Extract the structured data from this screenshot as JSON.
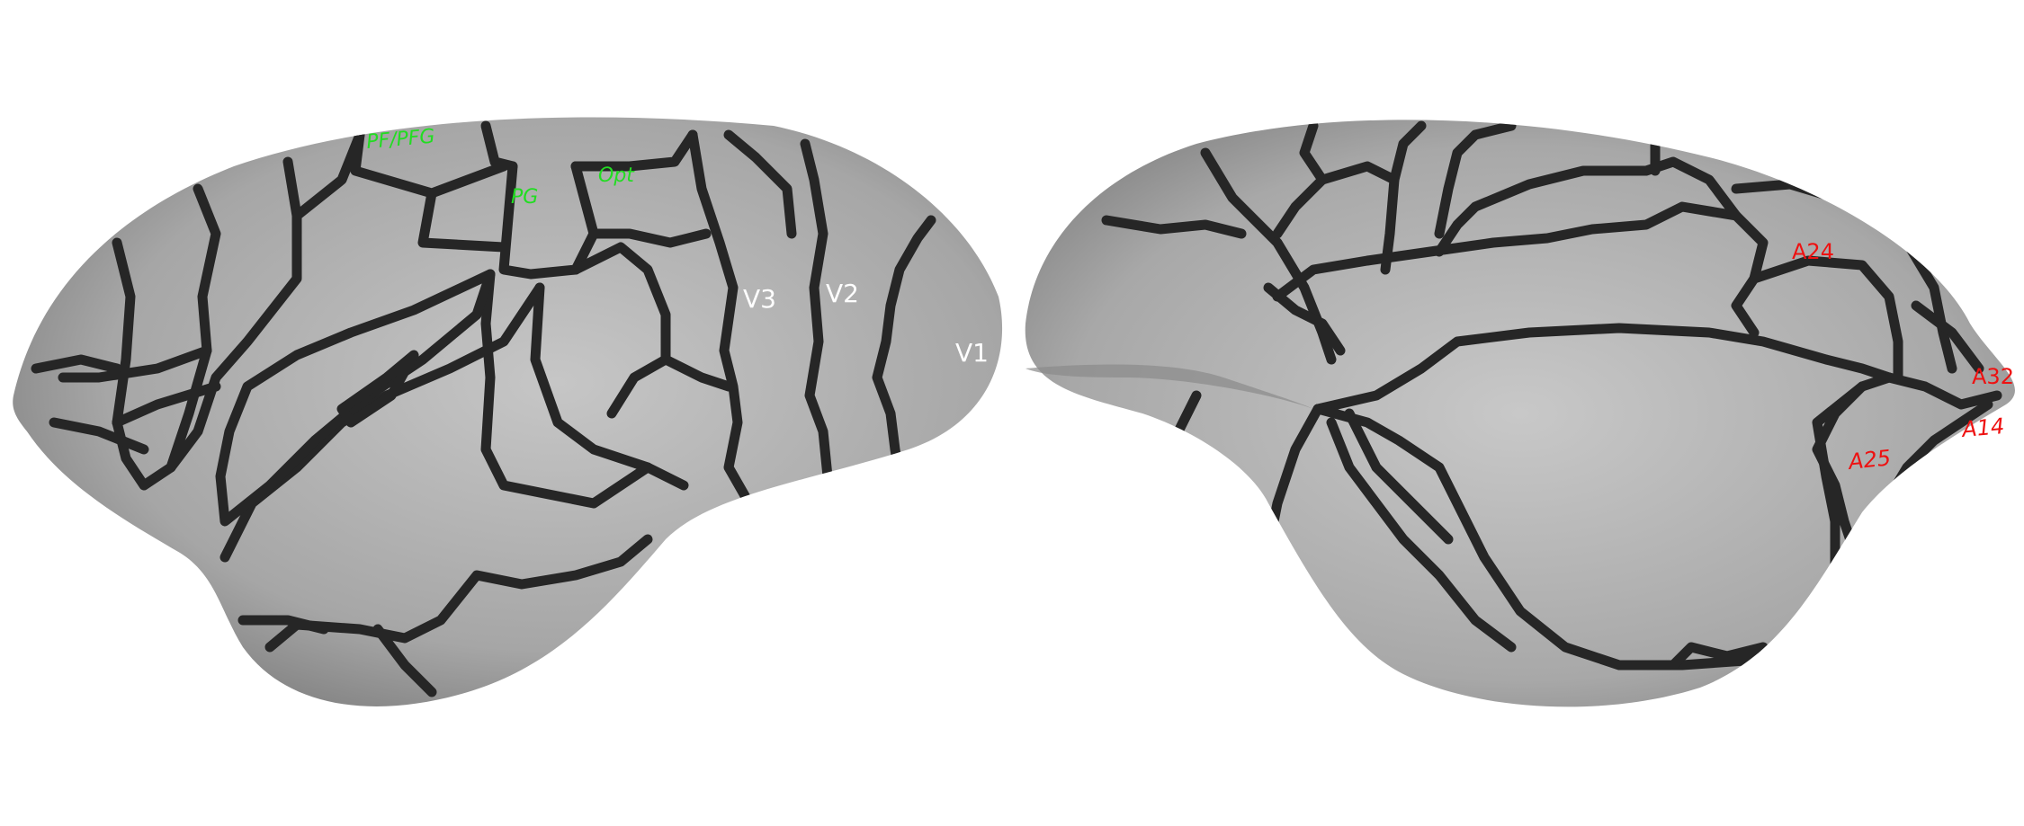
{
  "colors": {
    "surface": "#a9a9a9",
    "border": "#262626",
    "label_green": "#22dd22",
    "label_white": "#ffffff",
    "label_red": "#ee1111"
  },
  "lateral_view": {
    "labels": {
      "pf_pfg": "PF/PFG",
      "pg": "PG",
      "opt": "Opt",
      "v3": "V3",
      "v2": "V2",
      "v1": "V1"
    }
  },
  "medial_view": {
    "labels": {
      "a24": "A24",
      "a32": "A32",
      "a14": "A14",
      "a25": "A25"
    }
  }
}
